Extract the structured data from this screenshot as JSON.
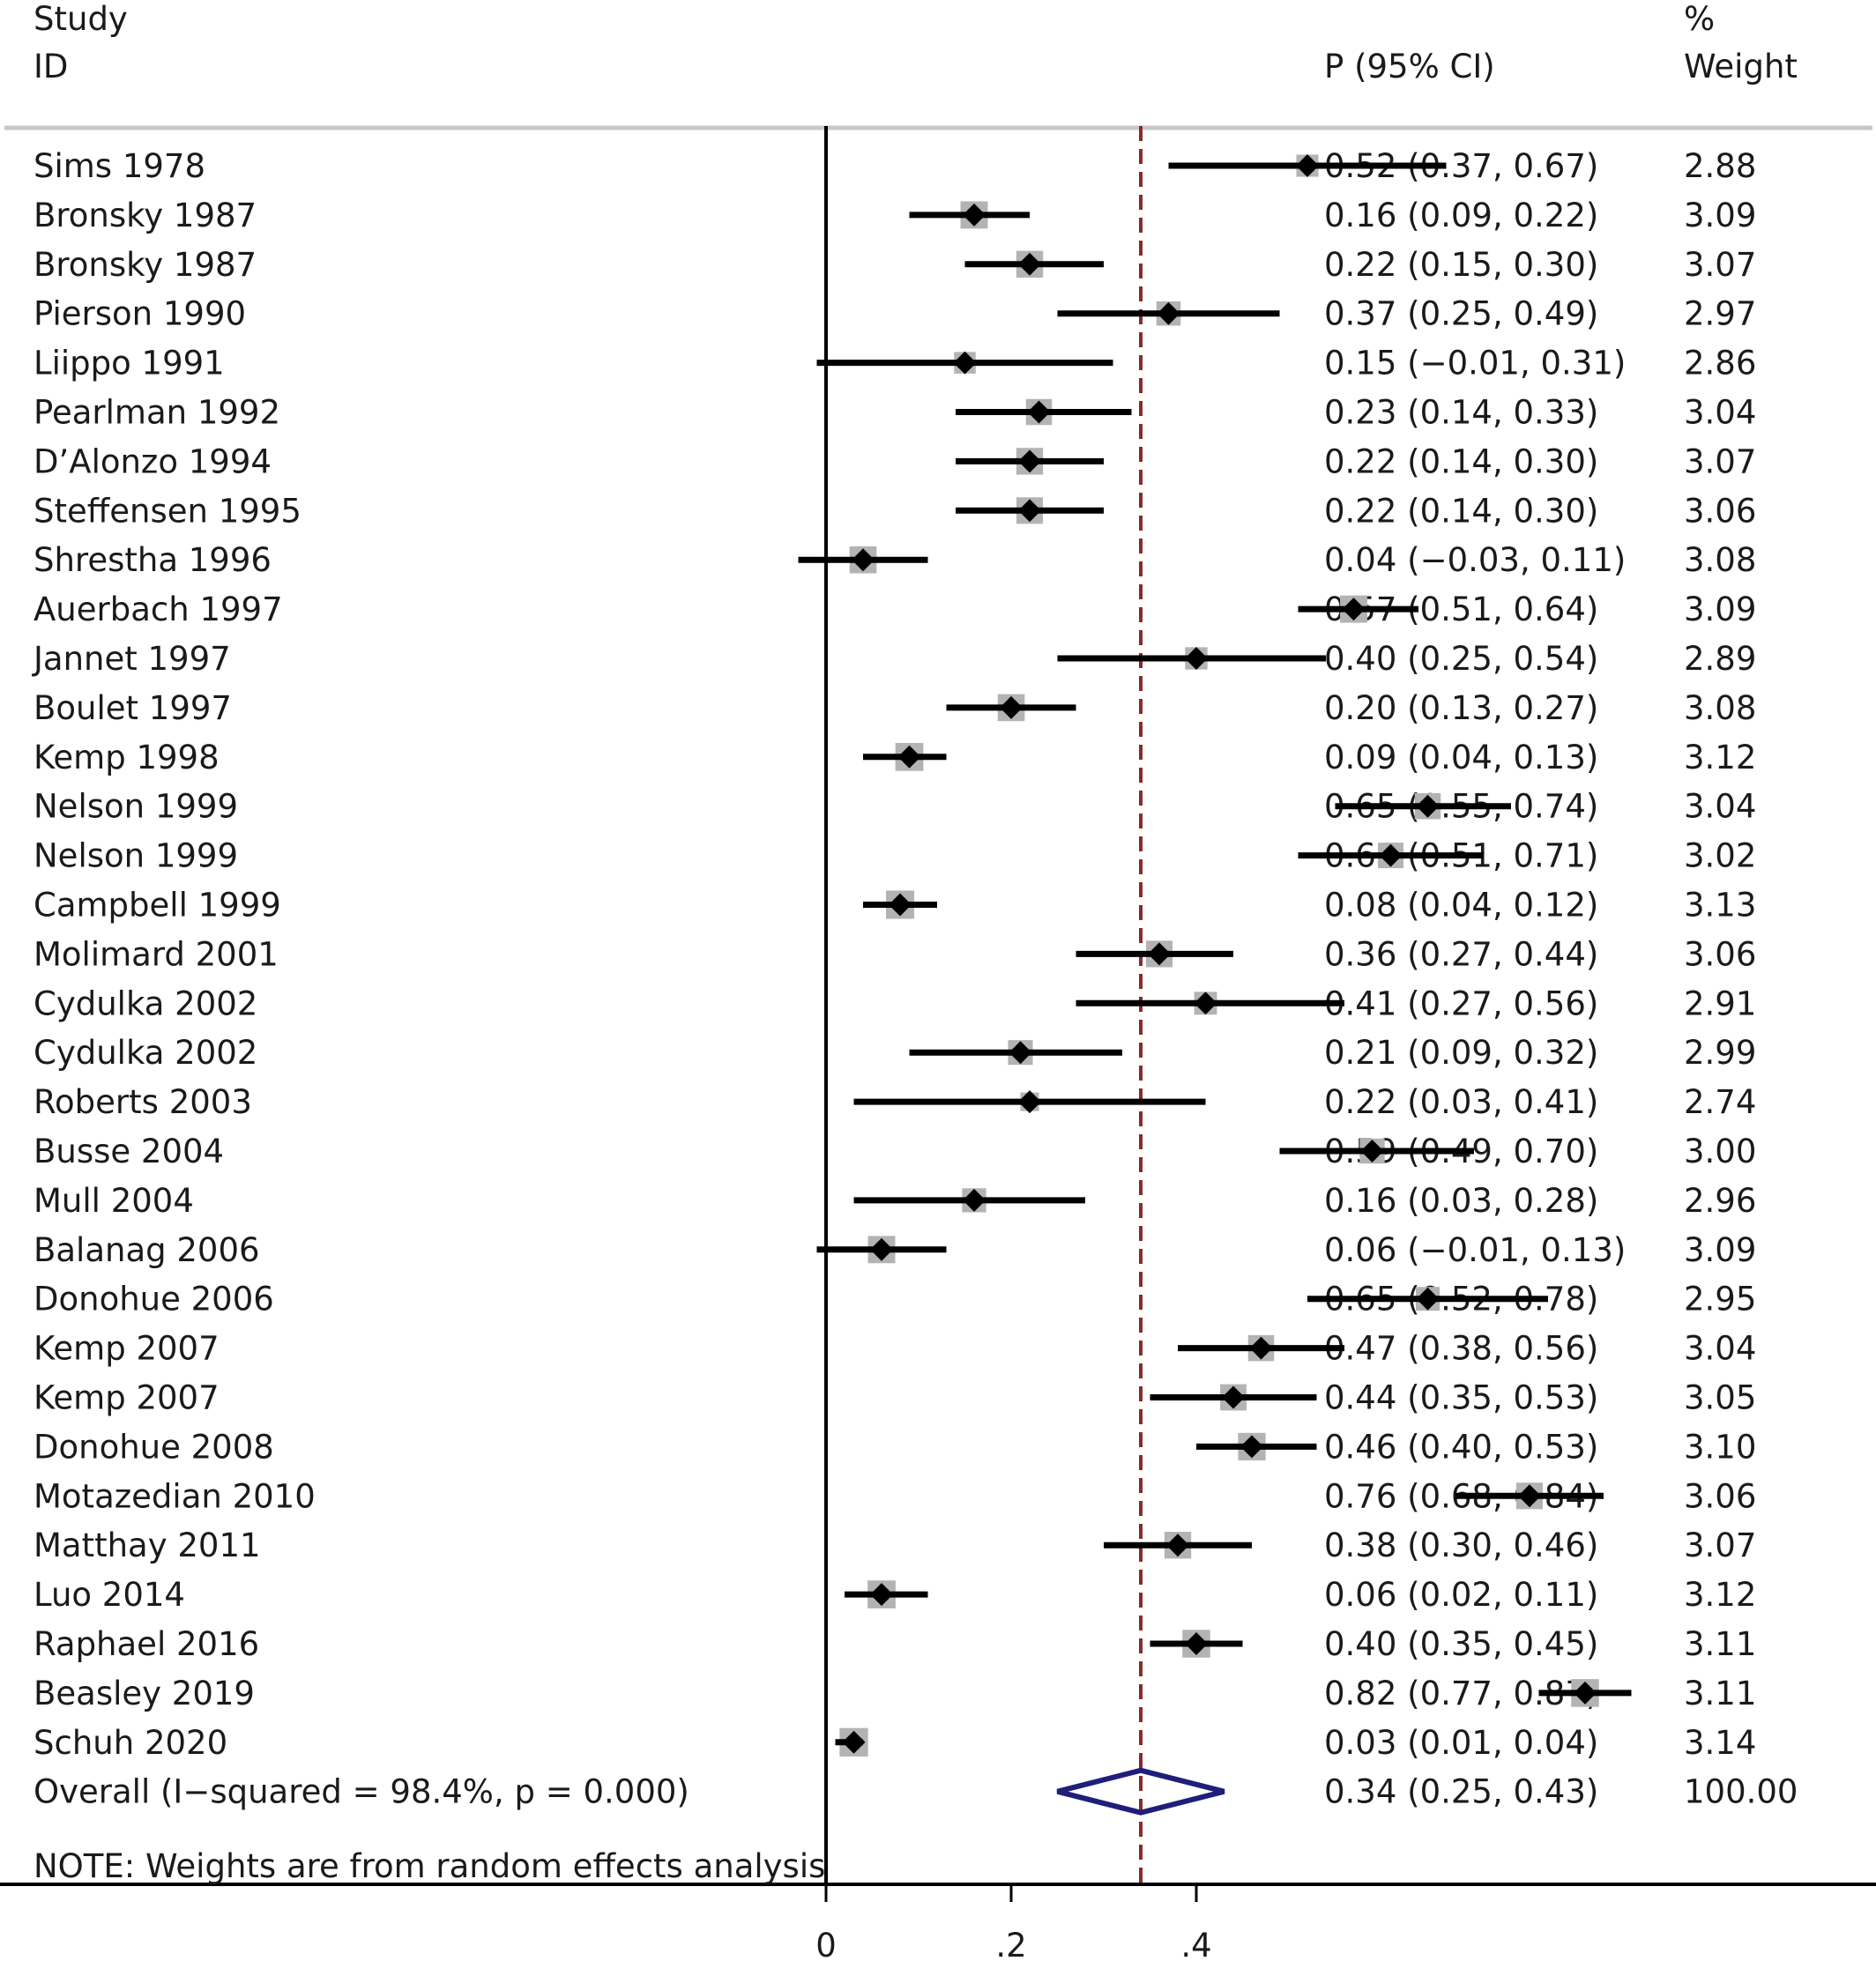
{
  "chart_data": {
    "type": "forest",
    "headers": {
      "study": "Study",
      "id": "ID",
      "estimate": "P (95% CI)",
      "weight_pct": "%",
      "weight": "Weight"
    },
    "studies": [
      {
        "label": "Sims 1978",
        "est": 0.52,
        "lo": 0.37,
        "hi": 0.67,
        "ci_text": "0.52 (0.37, 0.67)",
        "weight": "2.88"
      },
      {
        "label": "Bronsky 1987",
        "est": 0.16,
        "lo": 0.09,
        "hi": 0.22,
        "ci_text": "0.16 (0.09, 0.22)",
        "weight": "3.09"
      },
      {
        "label": "Bronsky 1987",
        "est": 0.22,
        "lo": 0.15,
        "hi": 0.3,
        "ci_text": "0.22 (0.15, 0.30)",
        "weight": "3.07"
      },
      {
        "label": "Pierson 1990",
        "est": 0.37,
        "lo": 0.25,
        "hi": 0.49,
        "ci_text": "0.37 (0.25, 0.49)",
        "weight": "2.97"
      },
      {
        "label": "Liippo 1991",
        "est": 0.15,
        "lo": -0.01,
        "hi": 0.31,
        "ci_text": "0.15 (−0.01, 0.31)",
        "weight": "2.86"
      },
      {
        "label": "Pearlman 1992",
        "est": 0.23,
        "lo": 0.14,
        "hi": 0.33,
        "ci_text": "0.23 (0.14, 0.33)",
        "weight": "3.04"
      },
      {
        "label": "D’Alonzo 1994",
        "est": 0.22,
        "lo": 0.14,
        "hi": 0.3,
        "ci_text": "0.22 (0.14, 0.30)",
        "weight": "3.07"
      },
      {
        "label": "Steffensen 1995",
        "est": 0.22,
        "lo": 0.14,
        "hi": 0.3,
        "ci_text": "0.22 (0.14, 0.30)",
        "weight": "3.06"
      },
      {
        "label": "Shrestha 1996",
        "est": 0.04,
        "lo": -0.03,
        "hi": 0.11,
        "ci_text": "0.04 (−0.03, 0.11)",
        "weight": "3.08"
      },
      {
        "label": "Auerbach 1997",
        "est": 0.57,
        "lo": 0.51,
        "hi": 0.64,
        "ci_text": "0.57 (0.51, 0.64)",
        "weight": "3.09"
      },
      {
        "label": "Jannet 1997",
        "est": 0.4,
        "lo": 0.25,
        "hi": 0.54,
        "ci_text": "0.40 (0.25, 0.54)",
        "weight": "2.89"
      },
      {
        "label": "Boulet 1997",
        "est": 0.2,
        "lo": 0.13,
        "hi": 0.27,
        "ci_text": "0.20 (0.13, 0.27)",
        "weight": "3.08"
      },
      {
        "label": "Kemp 1998",
        "est": 0.09,
        "lo": 0.04,
        "hi": 0.13,
        "ci_text": "0.09 (0.04, 0.13)",
        "weight": "3.12"
      },
      {
        "label": "Nelson 1999",
        "est": 0.65,
        "lo": 0.55,
        "hi": 0.74,
        "ci_text": "0.65 (0.55, 0.74)",
        "weight": "3.04"
      },
      {
        "label": "Nelson 1999",
        "est": 0.61,
        "lo": 0.51,
        "hi": 0.71,
        "ci_text": "0.61 (0.51, 0.71)",
        "weight": "3.02"
      },
      {
        "label": "Campbell 1999",
        "est": 0.08,
        "lo": 0.04,
        "hi": 0.12,
        "ci_text": "0.08 (0.04, 0.12)",
        "weight": "3.13"
      },
      {
        "label": "Molimard 2001",
        "est": 0.36,
        "lo": 0.27,
        "hi": 0.44,
        "ci_text": "0.36 (0.27, 0.44)",
        "weight": "3.06"
      },
      {
        "label": "Cydulka 2002",
        "est": 0.41,
        "lo": 0.27,
        "hi": 0.56,
        "ci_text": "0.41 (0.27, 0.56)",
        "weight": "2.91"
      },
      {
        "label": "Cydulka 2002",
        "est": 0.21,
        "lo": 0.09,
        "hi": 0.32,
        "ci_text": "0.21 (0.09, 0.32)",
        "weight": "2.99"
      },
      {
        "label": "Roberts 2003",
        "est": 0.22,
        "lo": 0.03,
        "hi": 0.41,
        "ci_text": "0.22 (0.03, 0.41)",
        "weight": "2.74"
      },
      {
        "label": "Busse 2004",
        "est": 0.59,
        "lo": 0.49,
        "hi": 0.7,
        "ci_text": "0.59 (0.49, 0.70)",
        "weight": "3.00"
      },
      {
        "label": "Mull 2004",
        "est": 0.16,
        "lo": 0.03,
        "hi": 0.28,
        "ci_text": "0.16 (0.03, 0.28)",
        "weight": "2.96"
      },
      {
        "label": "Balanag 2006",
        "est": 0.06,
        "lo": -0.01,
        "hi": 0.13,
        "ci_text": "0.06 (−0.01, 0.13)",
        "weight": "3.09"
      },
      {
        "label": "Donohue 2006",
        "est": 0.65,
        "lo": 0.52,
        "hi": 0.78,
        "ci_text": "0.65 (0.52, 0.78)",
        "weight": "2.95"
      },
      {
        "label": "Kemp 2007",
        "est": 0.47,
        "lo": 0.38,
        "hi": 0.56,
        "ci_text": "0.47 (0.38, 0.56)",
        "weight": "3.04"
      },
      {
        "label": "Kemp 2007",
        "est": 0.44,
        "lo": 0.35,
        "hi": 0.53,
        "ci_text": "0.44 (0.35, 0.53)",
        "weight": "3.05"
      },
      {
        "label": "Donohue 2008",
        "est": 0.46,
        "lo": 0.4,
        "hi": 0.53,
        "ci_text": "0.46 (0.40, 0.53)",
        "weight": "3.10"
      },
      {
        "label": "Motazedian 2010",
        "est": 0.76,
        "lo": 0.68,
        "hi": 0.84,
        "ci_text": "0.76 (0.68, 0.84)",
        "weight": "3.06"
      },
      {
        "label": "Matthay 2011",
        "est": 0.38,
        "lo": 0.3,
        "hi": 0.46,
        "ci_text": "0.38 (0.30, 0.46)",
        "weight": "3.07"
      },
      {
        "label": "Luo 2014",
        "est": 0.06,
        "lo": 0.02,
        "hi": 0.11,
        "ci_text": "0.06 (0.02, 0.11)",
        "weight": "3.12"
      },
      {
        "label": "Raphael 2016",
        "est": 0.4,
        "lo": 0.35,
        "hi": 0.45,
        "ci_text": "0.40 (0.35, 0.45)",
        "weight": "3.11"
      },
      {
        "label": "Beasley 2019",
        "est": 0.82,
        "lo": 0.77,
        "hi": 0.87,
        "ci_text": "0.82 (0.77, 0.87)",
        "weight": "3.11"
      },
      {
        "label": "Schuh 2020",
        "est": 0.03,
        "lo": 0.01,
        "hi": 0.04,
        "ci_text": "0.03 (0.01, 0.04)",
        "weight": "3.14"
      }
    ],
    "overall": {
      "label": "Overall  (I−squared = 98.4%, p = 0.000)",
      "est": 0.34,
      "lo": 0.25,
      "hi": 0.43,
      "ci_text": "0.34 (0.25, 0.43)",
      "weight": "100.00"
    },
    "note": "NOTE: Weights are from random effects analysis",
    "x_ticks": [
      {
        "value": 0,
        "label": "0"
      },
      {
        "value": 0.2,
        "label": ".2"
      },
      {
        "value": 0.4,
        "label": ".4"
      }
    ],
    "null_line": 0,
    "pooled_line": 0.34,
    "colors": {
      "marker": "#000000",
      "weight_box": "#b3b3b3",
      "ci_line": "#000000",
      "pooled_line": "#8b2a2a",
      "overall_diamond": "#1f1f7a",
      "separator": "#c8c8c8"
    }
  }
}
